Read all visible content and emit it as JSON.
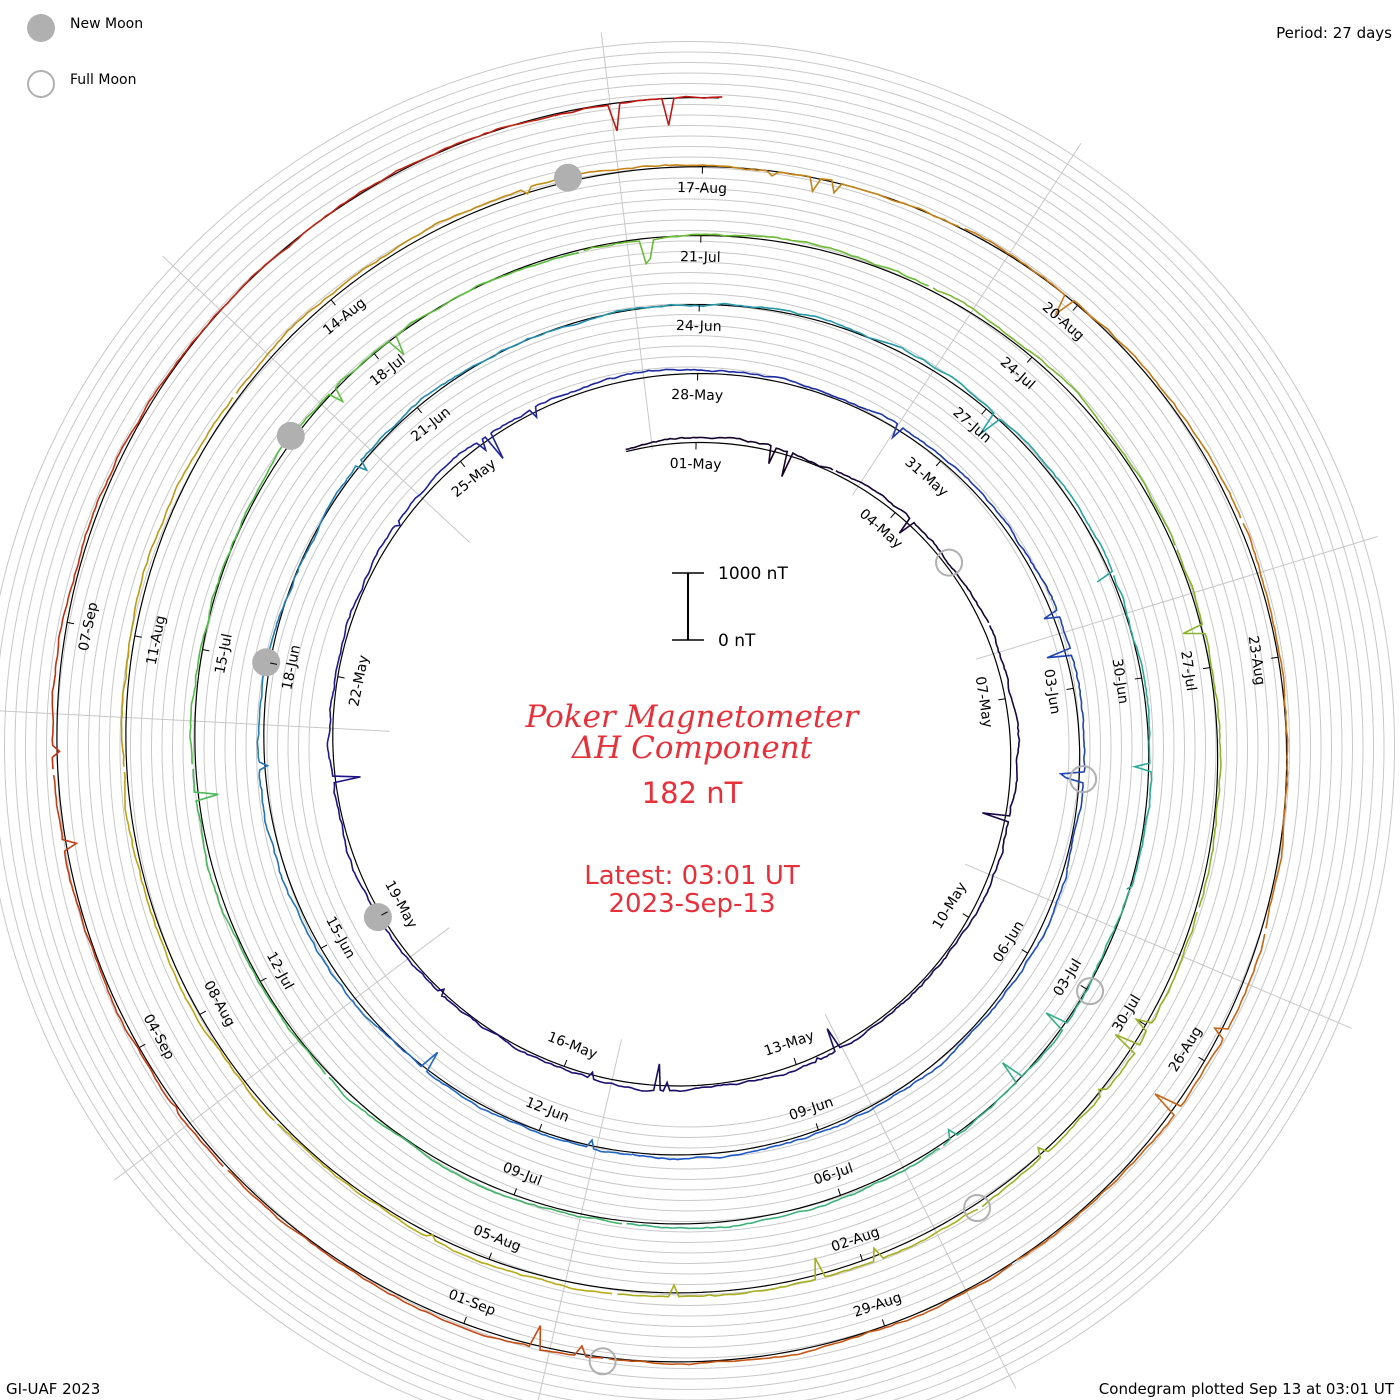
{
  "legend": {
    "new_moon_label": "New Moon",
    "full_moon_label": "Full Moon"
  },
  "period_label": "Period: 27 days",
  "footer_left": "GI-UAF 2023",
  "footer_right": "Condegram plotted Sep 13 at 03:01 UT",
  "title_line1": "Poker Magnetometer",
  "title_line2": "ΔH Component",
  "current_value": "182 nT",
  "latest_time": "Latest: 03:01 UT",
  "latest_date": "2023-Sep-13",
  "scale": {
    "top_label": "1000 nT",
    "bottom_label": "0 nT"
  },
  "chart_data": {
    "type": "line",
    "title": "Poker Magnetometer ΔH Component",
    "period_days": 27,
    "start_date": "2023-04-30",
    "end_date": "2023-09-13",
    "scale_nT": [
      0,
      1000
    ],
    "latest_value_nT": 182,
    "date_labels": [
      "01-May",
      "04-May",
      "07-May",
      "10-May",
      "13-May",
      "16-May",
      "19-May",
      "22-May",
      "25-May",
      "28-May",
      "31-May",
      "03-Jun",
      "06-Jun",
      "09-Jun",
      "12-Jun",
      "15-Jun",
      "18-Jun",
      "21-Jun",
      "24-Jun",
      "27-Jun",
      "30-Jun",
      "03-Jul",
      "06-Jul",
      "09-Jul",
      "12-Jul",
      "15-Jul",
      "18-Jul",
      "21-Jul",
      "24-Jul",
      "27-Jul",
      "30-Jul",
      "02-Aug",
      "05-Aug",
      "08-Aug",
      "11-Aug",
      "14-Aug",
      "17-Aug",
      "20-Aug",
      "23-Aug",
      "26-Aug",
      "29-Aug",
      "01-Sep",
      "04-Sep",
      "07-Sep"
    ],
    "new_moons": [
      "2023-05-19",
      "2023-06-18",
      "2023-07-17",
      "2023-08-16"
    ],
    "full_moons": [
      "2023-05-05",
      "2023-06-04",
      "2023-07-03",
      "2023-08-01",
      "2023-08-31"
    ]
  }
}
